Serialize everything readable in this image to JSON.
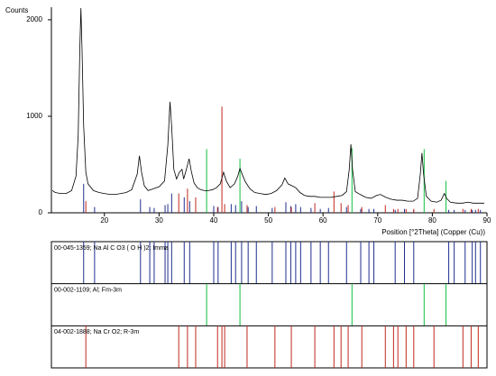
{
  "chart_data": {
    "type": "xrd",
    "y_label": "Counts",
    "x_label": "Position [°2Theta] (Copper (Cu))",
    "xlim": [
      10.3,
      90
    ],
    "ylim": [
      0,
      2130
    ],
    "xticks": [
      20,
      30,
      40,
      50,
      60,
      70,
      80,
      90
    ],
    "yticks": [
      0,
      1000,
      2000
    ],
    "x": [
      10.5,
      11,
      12,
      13,
      14,
      14.8,
      15.2,
      15.5,
      15.7,
      15.9,
      16.2,
      16.6,
      17,
      18,
      19,
      20,
      21,
      22,
      23,
      24,
      25,
      26,
      26.4,
      26.8,
      27.3,
      28,
      29,
      30,
      31,
      31.6,
      32,
      32.3,
      32.7,
      33.2,
      33.7,
      34.2,
      34.5,
      34.9,
      35.5,
      35.9,
      36.4,
      37,
      37.6,
      38.3,
      39,
      39.8,
      40.5,
      41.2,
      41.8,
      42.3,
      43,
      43.8,
      44.4,
      44.8,
      45.2,
      45.8,
      46.6,
      47.5,
      48.5,
      49.5,
      50.5,
      51.5,
      52.5,
      53,
      53.6,
      54.3,
      55,
      55.8,
      56.6,
      57.5,
      58.5,
      59.5,
      60.5,
      61.5,
      62.5,
      63.5,
      64.3,
      64.8,
      65.1,
      65.4,
      65.9,
      66.8,
      67.8,
      68.8,
      69.8,
      70.5,
      71.5,
      72.5,
      73.5,
      74.5,
      75.5,
      76.5,
      77.3,
      77.8,
      78.1,
      78.4,
      78.9,
      79.8,
      80.8,
      81.6,
      82.2,
      82.6,
      83.3,
      84.5,
      85.5,
      86.5,
      87.5,
      88.5,
      89.5
    ],
    "series": [
      {
        "color": "#000000",
        "values": [
          230,
          210,
          200,
          200,
          230,
          380,
          800,
          1700,
          2120,
          1700,
          900,
          420,
          300,
          230,
          210,
          200,
          190,
          190,
          200,
          210,
          240,
          400,
          590,
          420,
          280,
          230,
          250,
          270,
          330,
          700,
          1150,
          900,
          450,
          350,
          420,
          450,
          350,
          430,
          560,
          430,
          310,
          260,
          240,
          230,
          230,
          240,
          260,
          300,
          420,
          330,
          260,
          300,
          380,
          460,
          400,
          320,
          250,
          210,
          200,
          190,
          200,
          230,
          290,
          360,
          300,
          280,
          260,
          210,
          180,
          170,
          170,
          160,
          160,
          160,
          170,
          180,
          220,
          450,
          710,
          450,
          220,
          190,
          160,
          150,
          180,
          190,
          160,
          140,
          130,
          130,
          120,
          120,
          150,
          400,
          620,
          400,
          170,
          120,
          110,
          130,
          200,
          150,
          110,
          100,
          100,
          110,
          100,
          100,
          100
        ]
      }
    ],
    "reference_patterns": [
      {
        "name": "00-045-1359; Na Al C O3 ( O H )2; Imma",
        "color": "#1f2f8f",
        "positions": [
          16.2,
          18.2,
          26.6,
          28.3,
          29.1,
          31.1,
          31.6,
          32.3,
          34.6,
          35.6,
          40.0,
          40.8,
          43.2,
          44.0,
          45.1,
          46.3,
          47.8,
          50.7,
          53.2,
          54.1,
          55.0,
          55.9,
          57.8,
          59.5,
          61.0,
          64.3,
          66.9,
          68.4,
          69.3,
          73.2,
          74.9,
          76.6,
          83.0,
          84.0,
          86.0,
          87.3,
          87.9,
          88.8
        ],
        "intensities": [
          300,
          60,
          140,
          60,
          50,
          80,
          90,
          200,
          160,
          120,
          70,
          60,
          90,
          80,
          120,
          60,
          70,
          50,
          110,
          70,
          90,
          60,
          50,
          40,
          50,
          60,
          40,
          40,
          40,
          30,
          40,
          30,
          30,
          30,
          30,
          30,
          30,
          30
        ]
      },
      {
        "name": "00-002-1109; Al; Fm-3m",
        "color": "#10c040",
        "positions": [
          38.7,
          44.8,
          65.3,
          78.5,
          82.5
        ],
        "intensities": [
          660,
          560,
          670,
          660,
          330
        ]
      },
      {
        "name": "04-002-1888; Na Cr O2; R-3m",
        "color": "#c0281e",
        "positions": [
          16.6,
          33.6,
          35.2,
          36.7,
          40.7,
          41.5,
          42.0,
          46.1,
          51.2,
          54.2,
          58.5,
          62.0,
          63.3,
          64.6,
          67.1,
          71.4,
          72.9,
          73.7,
          75.2,
          76.6,
          80.3,
          85.6,
          87.1,
          88.4
        ],
        "intensities": [
          120,
          200,
          250,
          160,
          60,
          1100,
          90,
          80,
          60,
          60,
          100,
          220,
          100,
          80,
          60,
          80,
          40,
          40,
          40,
          40,
          40,
          40,
          40,
          40
        ]
      }
    ]
  }
}
